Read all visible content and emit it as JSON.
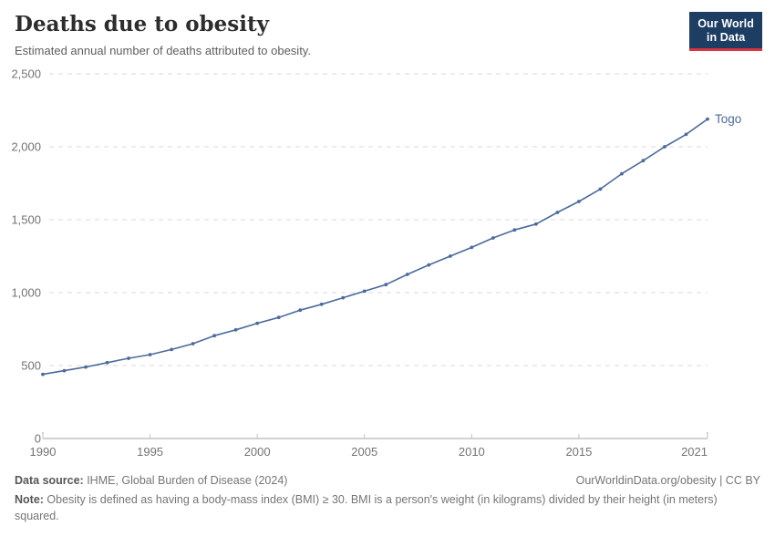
{
  "header": {
    "title": "Deaths due to obesity",
    "subtitle": "Estimated annual number of deaths attributed to obesity.",
    "logo": {
      "line1": "Our World",
      "line2": "in Data"
    }
  },
  "chart_data": {
    "type": "line",
    "title": "Deaths due to obesity",
    "x": [
      1990,
      1991,
      1992,
      1993,
      1994,
      1995,
      1996,
      1997,
      1998,
      1999,
      2000,
      2001,
      2002,
      2003,
      2004,
      2005,
      2006,
      2007,
      2008,
      2009,
      2010,
      2011,
      2012,
      2013,
      2014,
      2015,
      2016,
      2017,
      2018,
      2019,
      2020,
      2021
    ],
    "series": [
      {
        "name": "Togo",
        "color": "#4c6a9c",
        "values": [
          440,
          465,
          490,
          520,
          550,
          575,
          610,
          650,
          705,
          745,
          790,
          830,
          880,
          920,
          965,
          1010,
          1055,
          1125,
          1190,
          1250,
          1310,
          1375,
          1430,
          1470,
          1550,
          1625,
          1710,
          1815,
          1905,
          2000,
          2085,
          2190
        ]
      }
    ],
    "end_label": "Togo",
    "xlabel": "",
    "ylabel": "",
    "ylim": [
      0,
      2500
    ],
    "xlim": [
      1990,
      2021
    ],
    "yticks": [
      0,
      500,
      1000,
      1500,
      2000,
      2500
    ],
    "ytick_labels": [
      "0",
      "500",
      "1,000",
      "1,500",
      "2,000",
      "2,500"
    ],
    "xticks": [
      1990,
      1995,
      2000,
      2005,
      2010,
      2015,
      2021
    ],
    "grid": "horizontal-dashed",
    "legend_position": "end-of-line"
  },
  "footer": {
    "datasource_label": "Data source:",
    "datasource": " IHME, Global Burden of Disease (2024)",
    "attribution": "OurWorldinData.org/obesity | CC BY",
    "note_label": "Note:",
    "note": " Obesity is defined as having a body-mass index (BMI) ≥ 30. BMI is a person's weight (in kilograms) divided by their height (in meters) squared."
  },
  "colors": {
    "line": "#4c6a9c",
    "grid": "#dadada",
    "axis": "#a3a3a3",
    "tick": "#c2c2c2",
    "axis_text": "#737373",
    "logo_bg": "#1d3d63",
    "logo_stripe": "#d8353f",
    "title_text": "#2d2d2d"
  }
}
